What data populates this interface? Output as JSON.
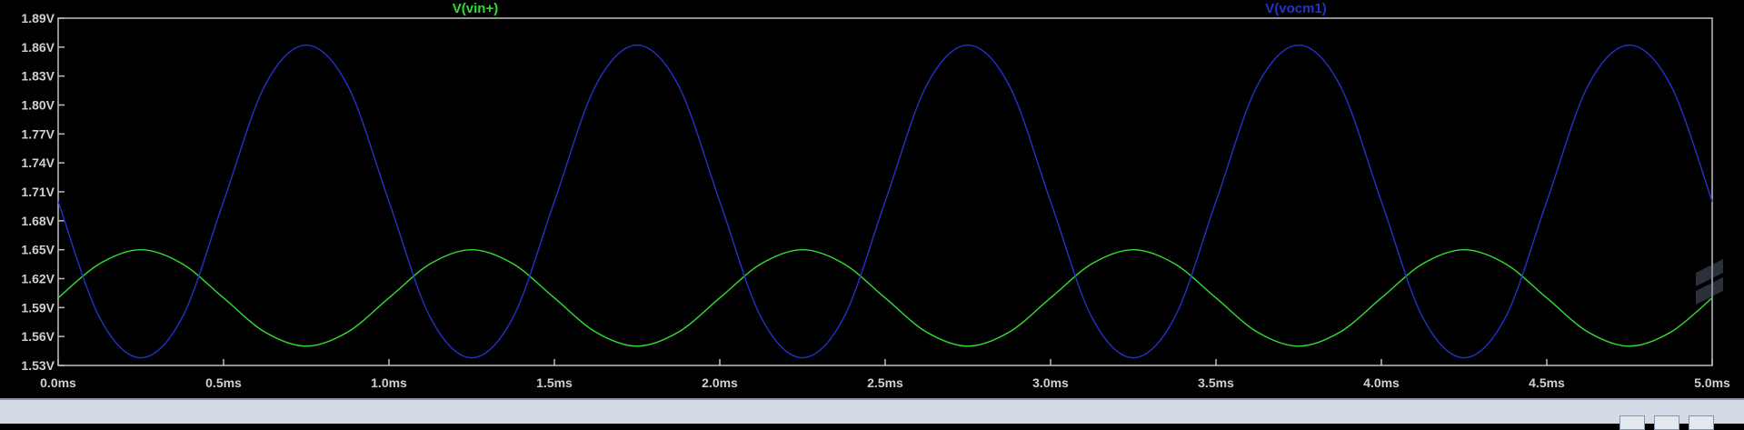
{
  "chart_data": {
    "type": "line",
    "title": "",
    "xlabel": "",
    "ylabel": "",
    "xlim": [
      0,
      5
    ],
    "ylim": [
      1.53,
      1.89
    ],
    "grid": false,
    "legend_placement": "top",
    "background_color": "#000000",
    "axis_color": "#bfbfbf",
    "x_ticks": [
      0,
      0.5,
      1.0,
      1.5,
      2.0,
      2.5,
      3.0,
      3.5,
      4.0,
      4.5,
      5.0
    ],
    "x_tick_labels": [
      "0.0ms",
      "0.5ms",
      "1.0ms",
      "1.5ms",
      "2.0ms",
      "2.5ms",
      "3.0ms",
      "3.5ms",
      "4.0ms",
      "4.5ms",
      "5.0ms"
    ],
    "y_ticks": [
      1.53,
      1.56,
      1.59,
      1.62,
      1.65,
      1.68,
      1.71,
      1.74,
      1.77,
      1.8,
      1.83,
      1.86,
      1.89
    ],
    "y_tick_labels": [
      "1.53V",
      "1.56V",
      "1.59V",
      "1.62V",
      "1.65V",
      "1.68V",
      "1.71V",
      "1.74V",
      "1.77V",
      "1.80V",
      "1.83V",
      "1.86V",
      "1.89V"
    ],
    "series": [
      {
        "name": "V(vin+)",
        "color": "#33dd33",
        "x": [
          0,
          0.125,
          0.25,
          0.375,
          0.5,
          0.625,
          0.75,
          0.875,
          1.0,
          1.125,
          1.25,
          1.375,
          1.5,
          1.625,
          1.75,
          1.875,
          2.0,
          2.125,
          2.25,
          2.375,
          2.5,
          2.625,
          2.75,
          2.875,
          3.0,
          3.125,
          3.25,
          3.375,
          3.5,
          3.625,
          3.75,
          3.875,
          4.0,
          4.125,
          4.25,
          4.375,
          4.5,
          4.625,
          4.75,
          4.875,
          5.0
        ],
        "values": [
          1.6,
          1.6354,
          1.65,
          1.6354,
          1.6,
          1.5646,
          1.55,
          1.5646,
          1.6,
          1.6354,
          1.65,
          1.6354,
          1.6,
          1.5646,
          1.55,
          1.5646,
          1.6,
          1.6354,
          1.65,
          1.6354,
          1.6,
          1.5646,
          1.55,
          1.5646,
          1.6,
          1.6354,
          1.65,
          1.6354,
          1.6,
          1.5646,
          1.55,
          1.5646,
          1.6,
          1.6354,
          1.65,
          1.6354,
          1.6,
          1.5646,
          1.55,
          1.5646,
          1.6
        ]
      },
      {
        "name": "V(vocm1)",
        "color": "#2233cc",
        "x": [
          0,
          0.125,
          0.25,
          0.375,
          0.5,
          0.625,
          0.75,
          0.875,
          1.0,
          1.125,
          1.25,
          1.375,
          1.5,
          1.625,
          1.75,
          1.875,
          2.0,
          2.125,
          2.25,
          2.375,
          2.5,
          2.625,
          2.75,
          2.875,
          3.0,
          3.125,
          3.25,
          3.375,
          3.5,
          3.625,
          3.75,
          3.875,
          4.0,
          4.125,
          4.25,
          4.375,
          4.5,
          4.625,
          4.75,
          4.875,
          5.0
        ],
        "values": [
          1.7,
          1.5798,
          1.538,
          1.5798,
          1.7,
          1.8202,
          1.862,
          1.8202,
          1.7,
          1.5798,
          1.538,
          1.5798,
          1.7,
          1.8202,
          1.862,
          1.8202,
          1.7,
          1.5798,
          1.538,
          1.5798,
          1.7,
          1.8202,
          1.862,
          1.8202,
          1.7,
          1.5798,
          1.538,
          1.5798,
          1.7,
          1.8202,
          1.862,
          1.8202,
          1.7,
          1.5798,
          1.538,
          1.5798,
          1.7,
          1.8202,
          1.862,
          1.8202,
          1.7
        ]
      }
    ]
  }
}
